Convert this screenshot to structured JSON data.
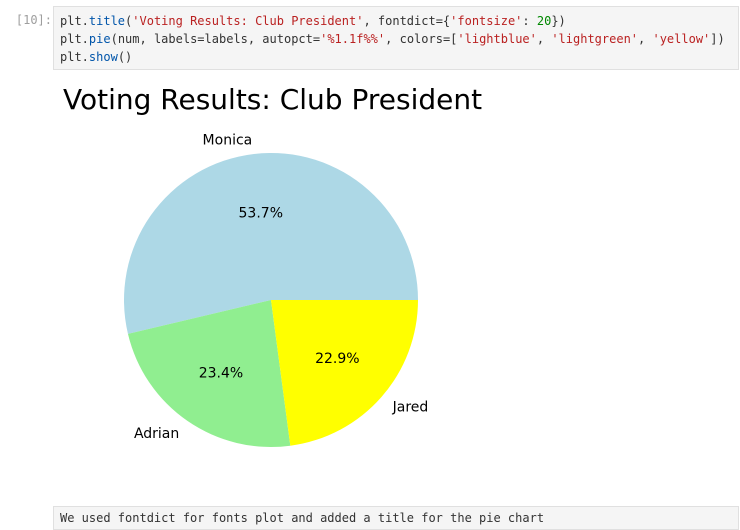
{
  "cell": {
    "prompt": "[10]:",
    "code_lines": [
      [
        {
          "t": "plt.",
          "c": ""
        },
        {
          "t": "title",
          "c": "fn"
        },
        {
          "t": "(",
          "c": ""
        },
        {
          "t": "'Voting Results: Club President'",
          "c": "str"
        },
        {
          "t": ", fontdict={",
          "c": ""
        },
        {
          "t": "'fontsize'",
          "c": "str"
        },
        {
          "t": ": ",
          "c": ""
        },
        {
          "t": "20",
          "c": "num"
        },
        {
          "t": "})",
          "c": ""
        }
      ],
      [
        {
          "t": "plt.",
          "c": ""
        },
        {
          "t": "pie",
          "c": "fn"
        },
        {
          "t": "(num, labels=labels, autopct=",
          "c": ""
        },
        {
          "t": "'%1.1f%%'",
          "c": "str"
        },
        {
          "t": ", colors=[",
          "c": ""
        },
        {
          "t": "'lightblue'",
          "c": "str"
        },
        {
          "t": ", ",
          "c": ""
        },
        {
          "t": "'lightgreen'",
          "c": "str"
        },
        {
          "t": ", ",
          "c": ""
        },
        {
          "t": "'yellow'",
          "c": "str"
        },
        {
          "t": "])",
          "c": ""
        }
      ],
      [
        {
          "t": "plt.",
          "c": ""
        },
        {
          "t": "show",
          "c": "fn"
        },
        {
          "t": "()",
          "c": ""
        }
      ]
    ]
  },
  "chart_data": {
    "type": "pie",
    "title": "Voting Results: Club President",
    "labels": [
      "Monica",
      "Adrian",
      "Jared"
    ],
    "values": [
      53.7,
      23.4,
      22.9
    ],
    "pct_labels": [
      "53.7%",
      "23.4%",
      "22.9%"
    ],
    "colors": [
      "#add8e6",
      "#90ee90",
      "#ffff00"
    ],
    "start_angle": 0,
    "direction": "counterclockwise"
  },
  "markdown": {
    "text": "We used fontdict for fonts plot and added a title for the pie chart"
  }
}
